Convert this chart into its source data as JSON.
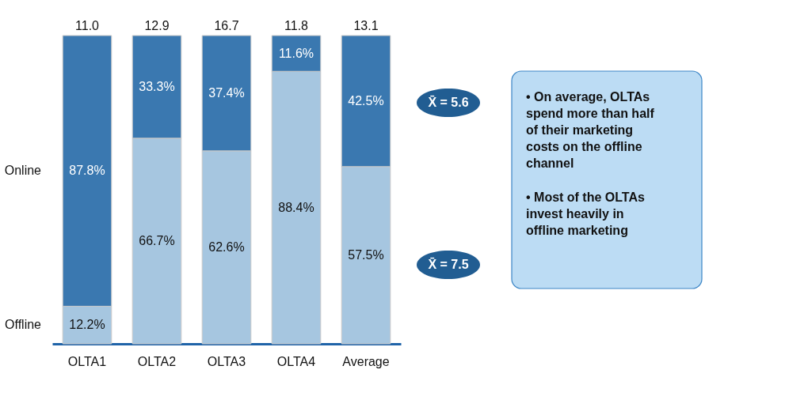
{
  "chart_data": {
    "type": "bar",
    "stacked": true,
    "categories": [
      "OLTA1",
      "OLTA2",
      "OLTA3",
      "OLTA4",
      "Average"
    ],
    "ylim": [
      0,
      100
    ],
    "tick_labels": "x",
    "grid": false,
    "legend": false,
    "series": [
      {
        "name": "Offline",
        "color": "#a6c6e0",
        "values": [
          12.2,
          66.7,
          62.6,
          88.4,
          57.5
        ],
        "value_labels": [
          "12.2%",
          "66.7%",
          "62.6%",
          "88.4%",
          "57.5%"
        ]
      },
      {
        "name": "Online",
        "color": "#3a78b0",
        "values": [
          87.8,
          33.3,
          37.4,
          11.6,
          42.5
        ],
        "value_labels": [
          "87.8%",
          "33.3%",
          "37.4%",
          "11.6%",
          "42.5%"
        ]
      }
    ],
    "annotations": [
      "X̄ = 5.6",
      "X̄ = 7.5",
      "• On average, OLTAs spend more than half of their marketing costs on the offline channel",
      "• Most of the OLTAs invest heavily in offline marketing",
      {
        "text": "11.0",
        "x": "OLTA1",
        "y": 100
      },
      {
        "text": "12.9",
        "x": "OLTA2",
        "y": 100
      },
      {
        "text": "16.7",
        "x": "OLTA3",
        "y": 100
      },
      {
        "text": "11.8",
        "x": "OLTA4",
        "y": 100
      },
      {
        "text": "13.1",
        "x": "Average",
        "y": 100
      }
    ]
  }
}
